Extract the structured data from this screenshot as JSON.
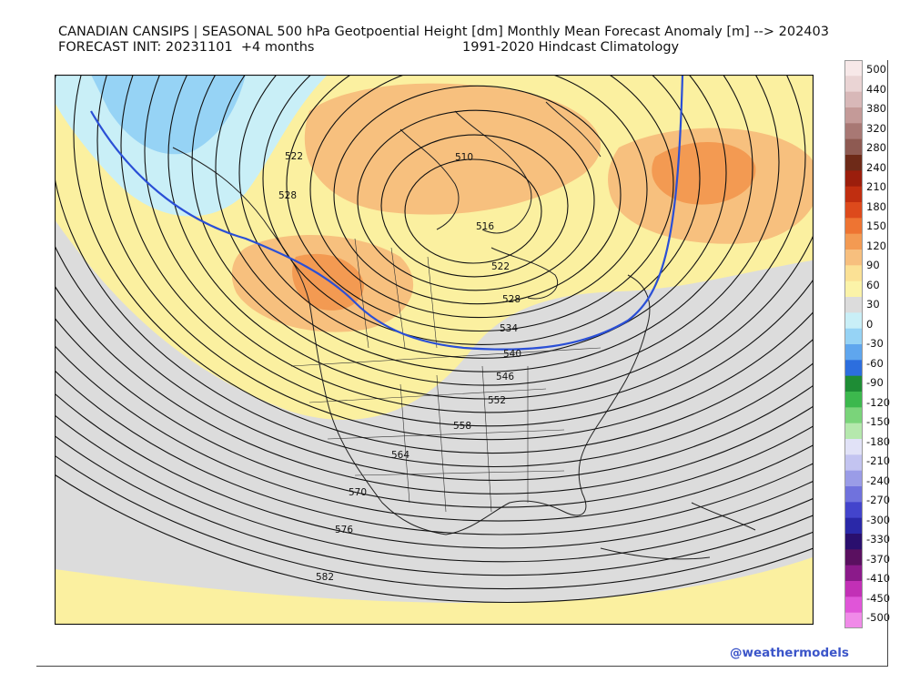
{
  "header": {
    "title_line1": "CANADIAN CANSIPS | SEASONAL 500 hPa Geotpoential Height [dm] Monthly Mean Forecast Anomaly [m] --> 202403",
    "title_line2_left": "FORECAST INIT: 20231101  +4 months",
    "title_line2_right": "1991-2020 Hindcast Climatology"
  },
  "map": {
    "contour_labels": [
      "522",
      "528",
      "510",
      "516",
      "522",
      "528",
      "534",
      "540",
      "546",
      "552",
      "558",
      "564",
      "570",
      "576",
      "582"
    ],
    "highlight_contour_color": "#2a4fd6"
  },
  "colorbar": {
    "ticks": [
      "500",
      "440",
      "380",
      "320",
      "280",
      "240",
      "210",
      "180",
      "150",
      "120",
      "90",
      "60",
      "30",
      "0",
      "-30",
      "-60",
      "-90",
      "-120",
      "-150",
      "-180",
      "-210",
      "-240",
      "-270",
      "-300",
      "-330",
      "-370",
      "-410",
      "-450",
      "-500"
    ],
    "colors": [
      "#f7e8e8",
      "#ead4d4",
      "#d8b8b8",
      "#c49a98",
      "#a87874",
      "#8e5a52",
      "#6e2a18",
      "#9b1e0c",
      "#c02e10",
      "#dd4a1c",
      "#ee7432",
      "#f39a52",
      "#f7bf7e",
      "#fbe195",
      "#fbf3a8",
      "#dcdcdc",
      "#c9eff7",
      "#96d3f5",
      "#5fa6ee",
      "#2c6ede",
      "#1e8c35",
      "#3cb84d",
      "#7ad47a",
      "#b5e8ad",
      "#e1e2f7",
      "#c3c4f1",
      "#9a9ce7",
      "#7072dd",
      "#4344cc",
      "#2a28a8",
      "#2a0f6e",
      "#5a1060",
      "#8b1a8a",
      "#c230b6",
      "#e055d8",
      "#f08ae8"
    ]
  },
  "footer": {
    "credit": "@weathermodels"
  }
}
